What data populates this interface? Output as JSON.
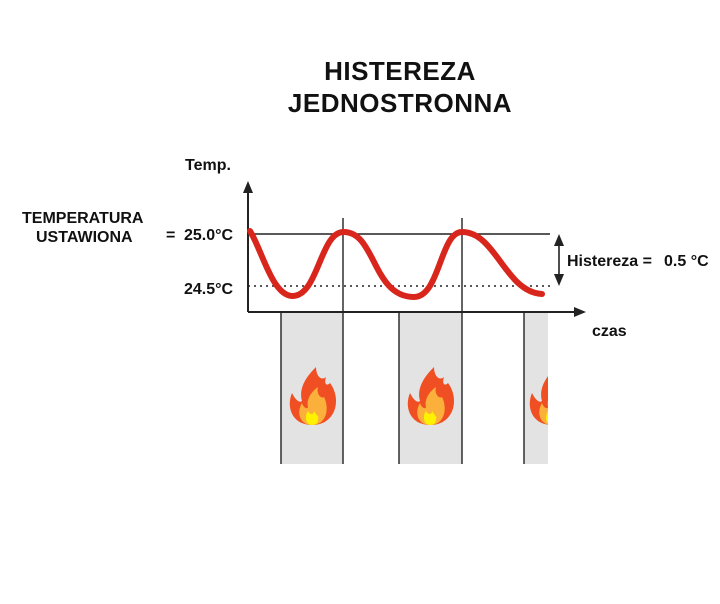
{
  "title_line1": "HISTEREZA",
  "title_line2": "JEDNOSTRONNA",
  "y_axis_label": "Temp.",
  "x_axis_label": "czas",
  "setpoint_label_line1": "TEMPERATURA",
  "setpoint_label_line2": "USTAWIONA",
  "equals_sign": "=",
  "setpoint_value": "25.0°C",
  "lower_value": "24.5°C",
  "hysteresis_label": "Histereza =",
  "hysteresis_value": "0.5 °C",
  "colors": {
    "curve": "#d9261c",
    "heating_band": "#e3e3e3",
    "flame_outer": "#f04e23",
    "flame_inner": "#fbb03b",
    "flame_core": "#fff200"
  },
  "icons": [
    "flame-icon",
    "flame-icon",
    "flame-icon"
  ]
}
